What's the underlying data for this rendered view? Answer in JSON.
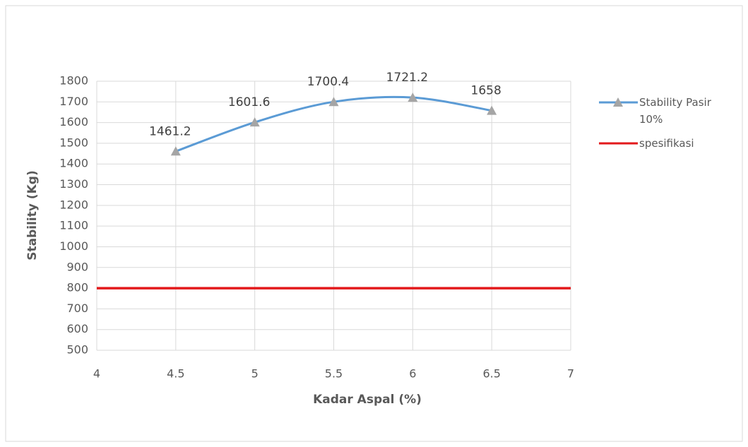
{
  "chart_data": {
    "type": "line",
    "x_label": "Kadar Aspal (%)",
    "y_label": "Stability (Kg)",
    "xlim": [
      4,
      7
    ],
    "xticks": [
      4,
      4.5,
      5,
      5.5,
      6,
      6.5,
      7
    ],
    "ylim": [
      500,
      1800
    ],
    "yticks": [
      500,
      600,
      700,
      800,
      900,
      1000,
      1100,
      1200,
      1300,
      1400,
      1500,
      1600,
      1700,
      1800
    ],
    "grid": true,
    "legend": "right",
    "series": [
      {
        "name": "Stability Pasir 10%",
        "color": "#5b9bd5",
        "marker_color": "#a5a5a5",
        "x": [
          4.5,
          5,
          5.5,
          6,
          6.5
        ],
        "values": [
          1461.2,
          1601.6,
          1700.4,
          1721.2,
          1658
        ]
      },
      {
        "name": "spesifikasi",
        "color": "#e31a1c",
        "x": [
          4,
          7
        ],
        "values": [
          800,
          800
        ]
      }
    ]
  }
}
